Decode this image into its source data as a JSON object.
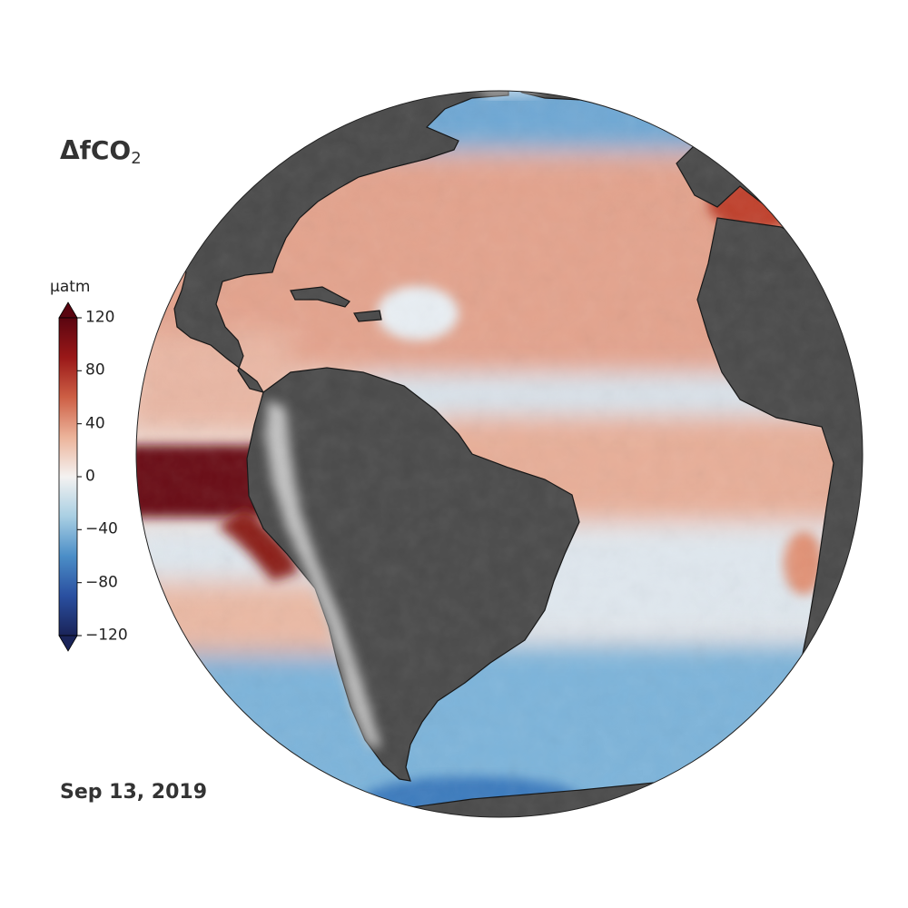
{
  "map": {
    "title_main": "ΔfCO",
    "title_sub": "2",
    "date": "Sep 13, 2019",
    "projection": "orthographic globe centred on the Americas and the Atlantic Ocean",
    "land_color": "#4a4a4a",
    "coast_color": "#111111"
  },
  "colorbar": {
    "unit": "µatm",
    "min": -120,
    "max": 120,
    "ticks": [
      "120",
      "80",
      "40",
      "0",
      "−40",
      "−80",
      "−120"
    ],
    "colors": [
      "#1a2459",
      "#2a4fa0",
      "#4b8ec7",
      "#a9cfe3",
      "#f4f2f1",
      "#ecb39a",
      "#cd5f45",
      "#9a1818",
      "#5a0510"
    ]
  }
}
